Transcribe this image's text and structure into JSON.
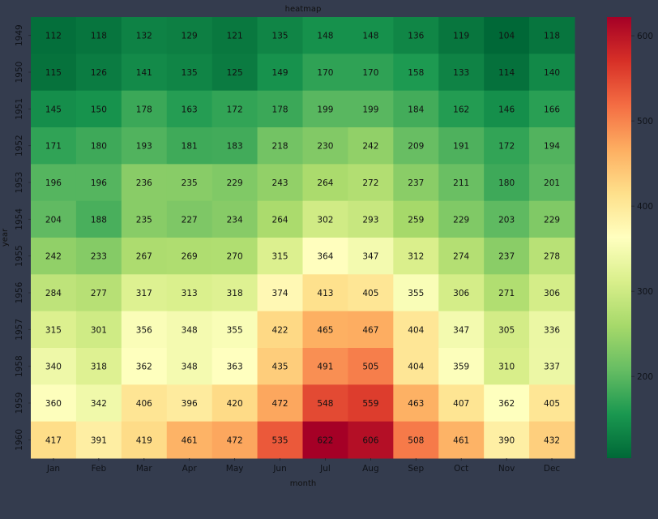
{
  "chart_data": {
    "type": "heatmap",
    "title": "heatmap",
    "xlabel": "month",
    "ylabel": "year",
    "x_categories": [
      "Jan",
      "Feb",
      "Mar",
      "Apr",
      "May",
      "Jun",
      "Jul",
      "Aug",
      "Sep",
      "Oct",
      "Nov",
      "Dec"
    ],
    "y_categories": [
      "1949",
      "1950",
      "1951",
      "1952",
      "1953",
      "1954",
      "1955",
      "1956",
      "1957",
      "1958",
      "1959",
      "1960"
    ],
    "values": [
      [
        112,
        118,
        132,
        129,
        121,
        135,
        148,
        148,
        136,
        119,
        104,
        118
      ],
      [
        115,
        126,
        141,
        135,
        125,
        149,
        170,
        170,
        158,
        133,
        114,
        140
      ],
      [
        145,
        150,
        178,
        163,
        172,
        178,
        199,
        199,
        184,
        162,
        146,
        166
      ],
      [
        171,
        180,
        193,
        181,
        183,
        218,
        230,
        242,
        209,
        191,
        172,
        194
      ],
      [
        196,
        196,
        236,
        235,
        229,
        243,
        264,
        272,
        237,
        211,
        180,
        201
      ],
      [
        204,
        188,
        235,
        227,
        234,
        264,
        302,
        293,
        259,
        229,
        203,
        229
      ],
      [
        242,
        233,
        267,
        269,
        270,
        315,
        364,
        347,
        312,
        274,
        237,
        278
      ],
      [
        284,
        277,
        317,
        313,
        318,
        374,
        413,
        405,
        355,
        306,
        271,
        306
      ],
      [
        315,
        301,
        356,
        348,
        355,
        422,
        465,
        467,
        404,
        347,
        305,
        336
      ],
      [
        340,
        318,
        362,
        348,
        363,
        435,
        491,
        505,
        404,
        359,
        310,
        337
      ],
      [
        360,
        342,
        406,
        396,
        420,
        472,
        548,
        559,
        463,
        407,
        362,
        405
      ],
      [
        417,
        391,
        419,
        461,
        472,
        535,
        622,
        606,
        508,
        461,
        390,
        432
      ]
    ],
    "colormap": "RdYlGn_r",
    "colormap_stops": [
      "#006837",
      "#1a9850",
      "#66bd63",
      "#a6d96a",
      "#d9ef8b",
      "#ffffbf",
      "#fee08b",
      "#fdae61",
      "#f46d43",
      "#d73027",
      "#a50026"
    ],
    "color_range": [
      104,
      622
    ],
    "annotations": true,
    "colorbar_ticks": [
      200,
      300,
      400,
      500,
      600
    ],
    "colorbar_tick_labels": [
      "200",
      "300",
      "400",
      "500",
      "600"
    ],
    "grid": false
  },
  "colors": {
    "background": "#343c4e",
    "text": "#111111",
    "tick_text": "#0f1218"
  }
}
